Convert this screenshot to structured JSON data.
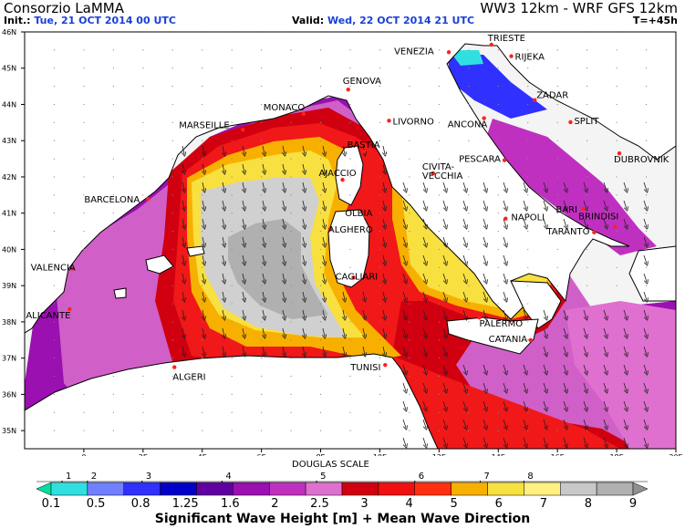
{
  "header": {
    "org": "Consorzio LaMMA",
    "model": "WW3 12km - WRF GFS 12km",
    "init_label": "Init.:",
    "init_value": "Tue, 21 OCT 2014  00 UTC",
    "valid_label": "Valid:",
    "valid_value": "Wed, 22 OCT 2014  21 UTC",
    "lead": "T=+45h"
  },
  "map": {
    "lat_labels": [
      "46N",
      "45N",
      "44N",
      "43N",
      "42N",
      "41N",
      "40N",
      "39N",
      "38N",
      "37N",
      "36N",
      "35N"
    ],
    "lon_labels": [
      "0",
      "2E",
      "4E",
      "6E",
      "8E",
      "10E",
      "12E",
      "14E",
      "16E",
      "18E",
      "20E"
    ],
    "colors": {
      "sea_bg": "#e3e3e3",
      "land": "#ffffff",
      "coast": "#000000",
      "city_dot": "#ff2020"
    },
    "cities": [
      {
        "name": "TRIESTE",
        "lon": 13.77,
        "lat": 45.65
      },
      {
        "name": "VENEZIA",
        "lon": 12.33,
        "lat": 45.44
      },
      {
        "name": "RIJEKA",
        "lon": 14.44,
        "lat": 45.33
      },
      {
        "name": "GENOVA",
        "lon": 8.93,
        "lat": 44.41
      },
      {
        "name": "MONACO",
        "lon": 7.42,
        "lat": 43.74
      },
      {
        "name": "ZADAR",
        "lon": 15.23,
        "lat": 44.12
      },
      {
        "name": "MARSEILLE",
        "lon": 5.37,
        "lat": 43.3
      },
      {
        "name": "LIVORNO",
        "lon": 10.31,
        "lat": 43.55
      },
      {
        "name": "ANCONA",
        "lon": 13.52,
        "lat": 43.62
      },
      {
        "name": "SPLIT",
        "lon": 16.44,
        "lat": 43.51
      },
      {
        "name": "DUBROVNIK",
        "lon": 18.09,
        "lat": 42.65
      },
      {
        "name": "BASTIA",
        "lon": 9.45,
        "lat": 42.7
      },
      {
        "name": "AJACCIO",
        "lon": 8.74,
        "lat": 41.92
      },
      {
        "name": "PESCARA",
        "lon": 14.21,
        "lat": 42.46
      },
      {
        "name": "CIVITA-",
        "lon": 11.8,
        "lat": 42.1
      },
      {
        "name": "VECCHIA",
        "lon": 11.8,
        "lat": 42.1
      },
      {
        "name": "BARCELONA",
        "lon": 2.17,
        "lat": 41.39
      },
      {
        "name": "OLBIA",
        "lon": 9.5,
        "lat": 40.92
      },
      {
        "name": "ALGHERO",
        "lon": 8.32,
        "lat": 40.56
      },
      {
        "name": "NAPOLI",
        "lon": 14.25,
        "lat": 40.85
      },
      {
        "name": "BARI",
        "lon": 16.87,
        "lat": 41.12
      },
      {
        "name": "BRINDISI",
        "lon": 17.94,
        "lat": 40.63
      },
      {
        "name": "TARANTO",
        "lon": 17.24,
        "lat": 40.47
      },
      {
        "name": "VALENCIA",
        "lon": -0.38,
        "lat": 39.47
      },
      {
        "name": "CAGLIARI",
        "lon": 9.11,
        "lat": 39.22
      },
      {
        "name": "ALICANTE",
        "lon": -0.48,
        "lat": 38.35
      },
      {
        "name": "PALERMO",
        "lon": 13.36,
        "lat": 38.12
      },
      {
        "name": "CATANIA",
        "lon": 15.09,
        "lat": 37.5
      },
      {
        "name": "ALGERI",
        "lon": 3.06,
        "lat": 36.75
      },
      {
        "name": "TUNISI",
        "lon": 10.18,
        "lat": 36.81
      }
    ]
  },
  "legend": {
    "douglas_title": "DOUGLAS SCALE",
    "douglas": [
      "1",
      "2",
      "3",
      "4",
      "5",
      "6",
      "7",
      "8"
    ],
    "values": [
      "0.1",
      "0.5",
      "0.8",
      "1.25",
      "1.6",
      "2",
      "2.5",
      "3",
      "4",
      "5",
      "6",
      "7",
      "8",
      "9"
    ],
    "colors": [
      "#00e0a0",
      "#30e0e0",
      "#7080ff",
      "#3030ff",
      "#0000c8",
      "#6000a0",
      "#9a10b0",
      "#c030c0",
      "#e070d0",
      "#d00010",
      "#f01010",
      "#ff3010",
      "#f8b000",
      "#f8e040",
      "#fff080",
      "#c8c8c8",
      "#b0b0b0",
      "#909090"
    ],
    "title": "Significant Wave Height [m] + Mean Wave Direction"
  }
}
